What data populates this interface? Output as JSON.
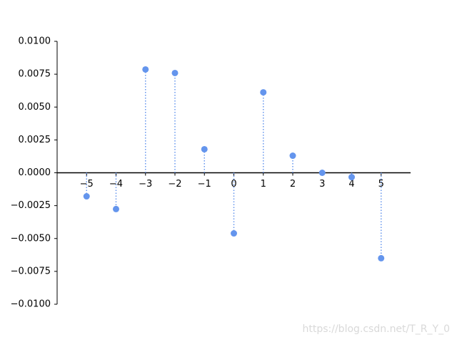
{
  "chart_data": {
    "type": "stem",
    "x": [
      -5,
      -4,
      -3,
      -2,
      -1,
      0,
      1,
      2,
      3,
      4,
      5
    ],
    "values": [
      -0.00179,
      -0.00276,
      0.00786,
      0.00759,
      0.00179,
      -0.00461,
      0.00612,
      0.0013,
      0.0,
      -0.00033,
      -0.0065
    ],
    "color": "#6495ed",
    "xlim": [
      -6,
      6
    ],
    "ylim": [
      -0.01,
      0.01
    ],
    "xticks": [
      {
        "value": -5,
        "label": "−5"
      },
      {
        "value": -4,
        "label": "−4"
      },
      {
        "value": -3,
        "label": "−3"
      },
      {
        "value": -2,
        "label": "−2"
      },
      {
        "value": -1,
        "label": "−1"
      },
      0,
      1,
      2,
      3,
      4,
      5
    ],
    "yticks": [
      {
        "value": 0.01,
        "label": "0.0100"
      },
      {
        "value": 0.0075,
        "label": "0.0075"
      },
      {
        "value": 0.005,
        "label": "0.0050"
      },
      {
        "value": 0.0025,
        "label": "0.0025"
      },
      {
        "value": 0,
        "label": "0.0000"
      },
      {
        "value": -0.0025,
        "label": "−0.0025"
      },
      {
        "value": -0.005,
        "label": "−0.0050"
      },
      {
        "value": -0.0075,
        "label": "−0.0075"
      },
      {
        "value": -0.01,
        "label": "−0.0100"
      }
    ],
    "watermark": "https://blog.csdn.net/T_R_Y_0"
  }
}
